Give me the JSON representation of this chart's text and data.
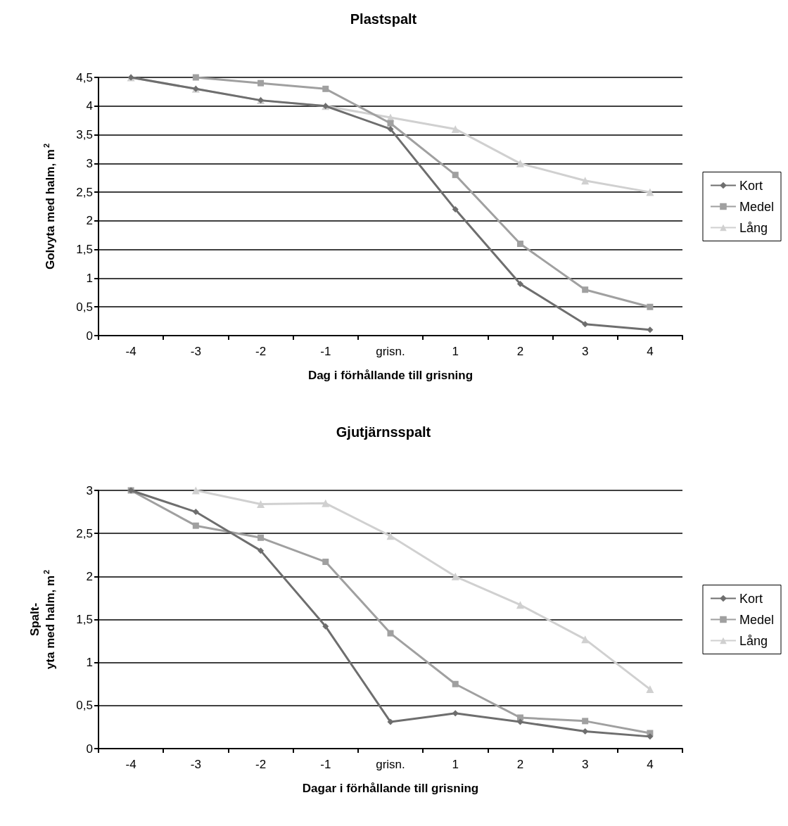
{
  "chart_data": [
    {
      "type": "line",
      "title": "Plastspalt",
      "xlabel": "Dag i förhållande till grisning",
      "ylabel": "Golvyta med halm, m$^{2}$",
      "categories": [
        "-4",
        "-3",
        "-2",
        "-1",
        "grisn.",
        "1",
        "2",
        "3",
        "4"
      ],
      "series": [
        {
          "name": "Kort",
          "color": "#6e6e6e",
          "marker": "diamond",
          "values": [
            4.5,
            4.3,
            4.1,
            4.0,
            3.6,
            2.2,
            0.9,
            0.2,
            0.1
          ]
        },
        {
          "name": "Medel",
          "color": "#a0a0a0",
          "marker": "square",
          "values": [
            null,
            4.5,
            4.4,
            4.3,
            3.7,
            2.8,
            1.6,
            0.8,
            0.5
          ]
        },
        {
          "name": "Lång",
          "color": "#d0d0d0",
          "marker": "triangle",
          "values": [
            4.5,
            4.3,
            4.1,
            4.0,
            3.8,
            3.6,
            3.0,
            2.7,
            2.5
          ]
        }
      ],
      "ylim": [
        0,
        4.5
      ],
      "yticks": [
        {
          "value": 0,
          "label": "0"
        },
        {
          "value": 0.5,
          "label": "0,5"
        },
        {
          "value": 1,
          "label": "1"
        },
        {
          "value": 1.5,
          "label": "1,5"
        },
        {
          "value": 2,
          "label": "2"
        },
        {
          "value": 2.5,
          "label": "2,5"
        },
        {
          "value": 3,
          "label": "3"
        },
        {
          "value": 3.5,
          "label": "3,5"
        },
        {
          "value": 4,
          "label": "4"
        },
        {
          "value": 4.5,
          "label": "4,5"
        }
      ],
      "grid": "y",
      "legend": "right"
    },
    {
      "type": "line",
      "title": "Gjutjärnsspalt",
      "xlabel": "Dagar i förhållande till grisning",
      "ylabel": "Spalt-\nyta med halm, m$^{2}$",
      "categories": [
        "-4",
        "-3",
        "-2",
        "-1",
        "grisn.",
        "1",
        "2",
        "3",
        "4"
      ],
      "series": [
        {
          "name": "Kort",
          "color": "#6e6e6e",
          "marker": "diamond",
          "values": [
            3.0,
            2.75,
            2.3,
            1.42,
            0.31,
            0.41,
            0.31,
            0.2,
            0.14
          ]
        },
        {
          "name": "Medel",
          "color": "#a0a0a0",
          "marker": "square",
          "values": [
            3.0,
            2.59,
            2.45,
            2.17,
            1.34,
            0.75,
            0.36,
            0.32,
            0.18
          ]
        },
        {
          "name": "Lång",
          "color": "#d0d0d0",
          "marker": "triangle",
          "values": [
            null,
            3.0,
            2.84,
            2.85,
            2.47,
            2.0,
            1.67,
            1.27,
            0.69
          ]
        }
      ],
      "ylim": [
        0,
        3
      ],
      "yticks": [
        {
          "value": 0,
          "label": "0"
        },
        {
          "value": 0.5,
          "label": "0,5"
        },
        {
          "value": 1,
          "label": "1"
        },
        {
          "value": 1.5,
          "label": "1,5"
        },
        {
          "value": 2,
          "label": "2"
        },
        {
          "value": 2.5,
          "label": "2,5"
        },
        {
          "value": 3,
          "label": "3"
        }
      ],
      "grid": "y",
      "legend": "right"
    }
  ]
}
